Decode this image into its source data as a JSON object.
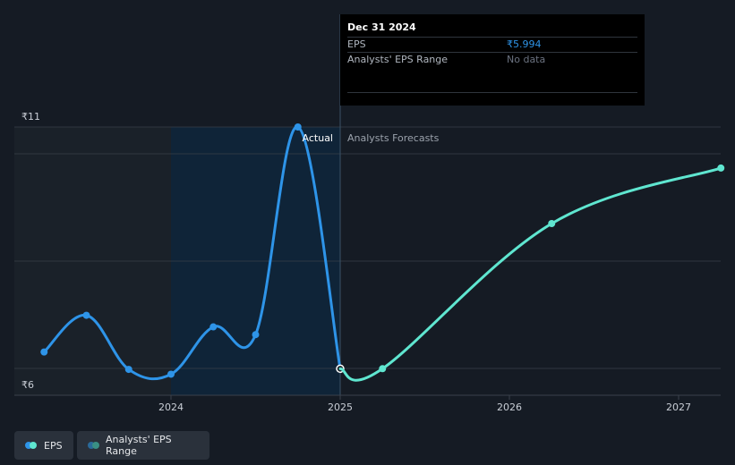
{
  "chart_data": {
    "type": "line",
    "y_tick_labels": [
      "₹11",
      "₹6"
    ],
    "x_tick_labels": [
      "2024",
      "2025",
      "2026",
      "2027"
    ],
    "region_labels": {
      "actual": "Actual",
      "forecast": "Analysts Forecasts"
    },
    "ylim": [
      5.9,
      11.1
    ],
    "series": [
      {
        "name": "EPS",
        "segment": "actual",
        "color": "#2e94e8",
        "points": [
          {
            "x": 2023.25,
            "y": 6.34
          },
          {
            "x": 2023.5,
            "y": 7.1
          },
          {
            "x": 2023.75,
            "y": 5.98
          },
          {
            "x": 2024.0,
            "y": 5.88
          },
          {
            "x": 2024.25,
            "y": 6.86
          },
          {
            "x": 2024.5,
            "y": 6.7
          },
          {
            "x": 2024.75,
            "y": 11.0
          },
          {
            "x": 2025.0,
            "y": 5.994
          }
        ]
      },
      {
        "name": "EPS",
        "segment": "forecast",
        "color": "#5fe6d0",
        "points": [
          {
            "x": 2025.0,
            "y": 5.994
          },
          {
            "x": 2025.25,
            "y": 5.995
          },
          {
            "x": 2026.25,
            "y": 9.0
          },
          {
            "x": 2027.25,
            "y": 10.15
          }
        ]
      }
    ],
    "tooltip": {
      "date": "Dec 31 2024",
      "eps_label": "EPS",
      "eps_value": "₹5.994",
      "range_label": "Analysts' EPS Range",
      "range_value": "No data"
    },
    "legend": [
      {
        "label": "EPS",
        "colors": [
          "#2e94e8",
          "#5fe6d0"
        ]
      },
      {
        "label": "Analysts' EPS Range",
        "colors": [
          "#2a6a9a",
          "#3a8f84"
        ]
      }
    ],
    "grid": true,
    "colors": {
      "background": "#151b24",
      "past_band": "#1a2129",
      "highlight_band": "#0f2438",
      "grid": "#3a414b",
      "axis_text": "#c9ced6"
    }
  }
}
